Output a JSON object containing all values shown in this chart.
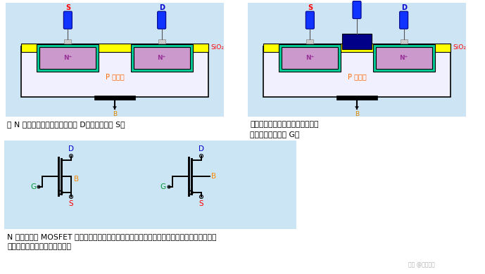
{
  "bg_color": "#ffffff",
  "panel_bg": "#cde4f5",
  "substrate_color": "#e8eeff",
  "sio2_color": "#ffff00",
  "n_plus_outer_color": "#00cc99",
  "n_plus_inner_color": "#cc99cc",
  "text_label_color": "#ff6600",
  "S_color": "#ff0000",
  "D_color": "#0000cc",
  "G_color": "#009933",
  "SiO2_color": "#ff0000",
  "B_label_color": "#ff8800",
  "desc_color": "#000000",
  "symbol_bg": "#cce5f5",
  "pin_blue": "#1133ff",
  "gate_dark": "#000066",
  "left_text1": "从 N 型区引出电极，一个是漏极 D，一个是源极 S。",
  "right_text1": "在源极和漏极之间的络缘层上镀一",
  "right_text2": "层金属铝作为栏极 G。",
  "bottom_text1": "N 沟道增强型 MOSFET 的符号如图所示。左面的一个衯底在内部与源极相连，右面的一个没有",
  "bottom_text2": "连接，使用时需要在外部连接。",
  "watermark": "头条 @衡丽电子"
}
